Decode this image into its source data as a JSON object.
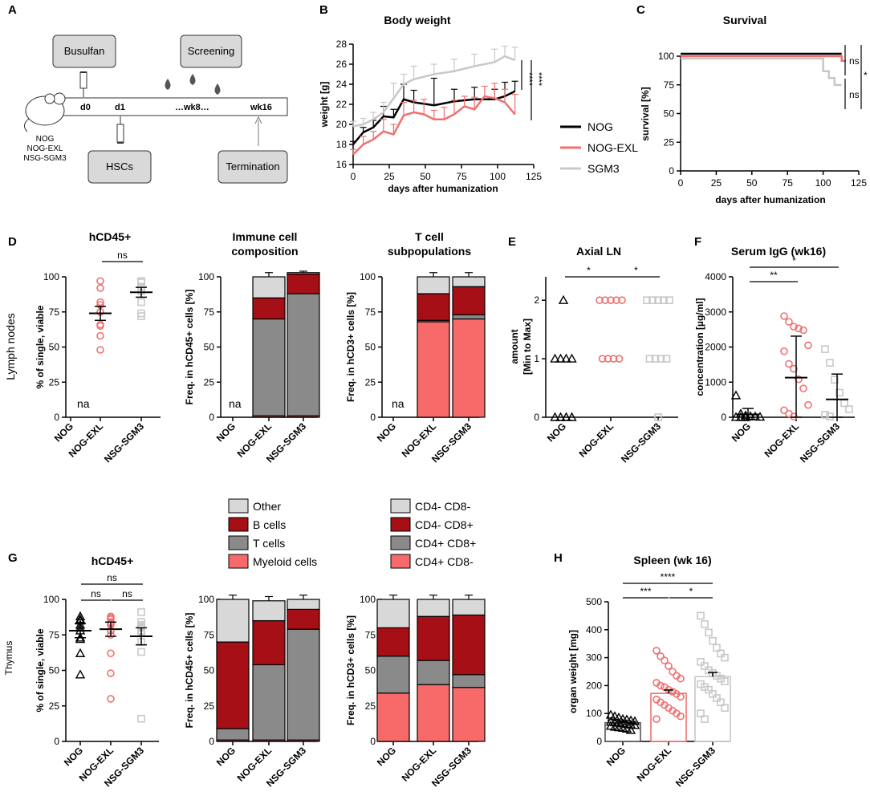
{
  "colors": {
    "nog": "#000000",
    "exl": "#f07070",
    "sgm3": "#c8c8c8",
    "other": "#d8d8d8",
    "b": "#a50f15",
    "t": "#8a8a8a",
    "my": "#f86a6a"
  },
  "panelA": {
    "letter": "A",
    "busulfan": "Busulfan",
    "screening": "Screening",
    "hscs": "HSCs",
    "termination": "Termination",
    "d0": "d0",
    "d1": "d1",
    "wk8": "…wk8…",
    "wk16": "wk16",
    "mice": [
      "NOG",
      "NOG-EXL",
      "NSG-SGM3"
    ]
  },
  "chart_data": [
    {
      "id": "B",
      "type": "line",
      "title": "Body weight",
      "xlabel": "days after humanization",
      "ylabel": "weight [g]",
      "xlim": [
        0,
        125
      ],
      "ylim": [
        16,
        28
      ],
      "xticks": [
        "0",
        "25",
        "50",
        "75",
        "100",
        "125"
      ],
      "yticks": [
        "16",
        "18",
        "20",
        "22",
        "24",
        "26",
        "28"
      ],
      "sig": [
        "****",
        "****"
      ],
      "legend": [
        "NOG",
        "NOG-EXL",
        "SGM3"
      ],
      "series": [
        {
          "name": "NOG",
          "x": [
            0,
            7,
            14,
            21,
            28,
            35,
            42,
            56,
            70,
            84,
            98,
            105,
            112
          ],
          "y": [
            18.0,
            19.2,
            19.7,
            20.8,
            20.7,
            22.5,
            22.2,
            21.9,
            22.3,
            22.5,
            22.5,
            22.8,
            23.3
          ],
          "err": [
            0.3,
            0.5,
            0.7,
            1.0,
            0.8,
            1.5,
            1.2,
            2.7,
            1.2,
            1.2,
            1.0,
            1.4,
            1.0
          ]
        },
        {
          "name": "NOG-EXL",
          "x": [
            0,
            7,
            14,
            21,
            28,
            35,
            42,
            49,
            56,
            63,
            70,
            77,
            84,
            91,
            98,
            105,
            112
          ],
          "y": [
            17.0,
            18.0,
            18.5,
            19.3,
            19.0,
            20.9,
            21.2,
            21.0,
            20.5,
            20.5,
            21.0,
            21.8,
            21.5,
            22.8,
            22.6,
            22.2,
            21.0
          ],
          "err": [
            0.5,
            0.8,
            0.8,
            1.2,
            1.0,
            1.3,
            1.2,
            1.5,
            0.9,
            1.2,
            1.4,
            1.0,
            1.2,
            1.0,
            1.5,
            1.3,
            2.0
          ]
        },
        {
          "name": "SGM3",
          "x": [
            0,
            7,
            14,
            21,
            28,
            35,
            42,
            56,
            70,
            84,
            98,
            105,
            112
          ],
          "y": [
            19.8,
            20.0,
            20.5,
            21.2,
            22.6,
            24.0,
            24.5,
            25.0,
            25.3,
            25.8,
            26.2,
            26.8,
            26.4
          ],
          "err": [
            0.5,
            0.6,
            0.7,
            1.0,
            1.5,
            1.0,
            1.3,
            1.0,
            1.2,
            1.2,
            1.3,
            1.0,
            1.3
          ]
        }
      ]
    },
    {
      "id": "C",
      "type": "line",
      "title": "Survival",
      "xlabel": "days after humanization",
      "ylabel": "survival [%]",
      "xlim": [
        0,
        125
      ],
      "ylim": [
        0,
        100
      ],
      "xticks": [
        "0",
        "25",
        "50",
        "75",
        "100",
        "125"
      ],
      "yticks": [
        "0",
        "25",
        "50",
        "75",
        "100"
      ],
      "sig": [
        "ns",
        "ns",
        "*"
      ],
      "series": [
        {
          "name": "NOG",
          "x": [
            0,
            113
          ],
          "y": [
            100,
            100
          ]
        },
        {
          "name": "NOG-EXL",
          "x": [
            0,
            113,
            113,
            116
          ],
          "y": [
            100,
            100,
            96,
            96
          ]
        },
        {
          "name": "SGM3",
          "x": [
            0,
            100,
            100,
            104,
            104,
            108,
            108,
            113
          ],
          "y": [
            100,
            100,
            89,
            89,
            83,
            83,
            77,
            77
          ]
        }
      ]
    },
    {
      "id": "D1",
      "type": "scatter",
      "title": "hCD45+",
      "ylabel": "% of single, viable",
      "rowlabel": "Lymph nodes",
      "categories": [
        "NOG",
        "NOG-EXL",
        "NSG-SGM3"
      ],
      "ylim": [
        0,
        100
      ],
      "yticks": [
        "0",
        "25",
        "50",
        "75",
        "100"
      ],
      "na": "na",
      "sig": "ns",
      "groups": [
        {
          "name": "NOG-EXL",
          "values": [
            97,
            92,
            82,
            80,
            75,
            66,
            65,
            58,
            48
          ],
          "mean": 74,
          "sem": 5
        },
        {
          "name": "NSG-SGM3",
          "values": [
            97,
            96,
            93,
            90,
            82,
            74,
            72
          ],
          "mean": 89,
          "sem": 3.5
        }
      ]
    },
    {
      "id": "D2",
      "type": "bar",
      "stacked": true,
      "title": "Immune cell composition",
      "ylabel": "Freq. in hCD45+ cells [%]",
      "categories": [
        "NOG",
        "NOG-EXL",
        "NSG-SGM3"
      ],
      "ylim": [
        0,
        100
      ],
      "yticks": [
        "0",
        "25",
        "50",
        "75",
        "100"
      ],
      "na": "na",
      "series": [
        {
          "name": "Myeloid cells",
          "values": [
            null,
            1,
            1
          ]
        },
        {
          "name": "T cells",
          "values": [
            null,
            69,
            87
          ]
        },
        {
          "name": "B cells",
          "values": [
            null,
            15,
            14
          ]
        },
        {
          "name": "Other",
          "values": [
            null,
            15,
            1
          ]
        }
      ]
    },
    {
      "id": "D3",
      "type": "bar",
      "stacked": true,
      "title": "T cell subpopulations",
      "ylabel": "Freq. in hCD3+ cells [%]",
      "categories": [
        "NOG",
        "NOG-EXL",
        "NSG-SGM3"
      ],
      "ylim": [
        0,
        100
      ],
      "yticks": [
        "0",
        "25",
        "50",
        "75",
        "100"
      ],
      "na": "na",
      "series": [
        {
          "name": "CD4+ CD8-",
          "values": [
            null,
            68,
            70
          ]
        },
        {
          "name": "CD4+ CD8+",
          "values": [
            null,
            1,
            3
          ]
        },
        {
          "name": "CD4- CD8+",
          "values": [
            null,
            19,
            20
          ]
        },
        {
          "name": "CD4- CD8-",
          "values": [
            null,
            12,
            7
          ]
        }
      ]
    },
    {
      "id": "E",
      "type": "scatter",
      "title": "Axial LN",
      "ylabel": "amount [Min to Max]",
      "categories": [
        "NOG",
        "NOG-EXL",
        "NSG-SGM3"
      ],
      "ylim": [
        0,
        2.4
      ],
      "yticks": [
        "0",
        "1",
        "2"
      ],
      "sig": [
        "*",
        "*"
      ],
      "groups": [
        {
          "name": "NOG",
          "values": [
            2,
            1,
            1,
            1,
            1,
            0,
            0,
            0,
            0
          ]
        },
        {
          "name": "NOG-EXL",
          "values": [
            2,
            2,
            2,
            2,
            2,
            1,
            1,
            1,
            1
          ]
        },
        {
          "name": "NSG-SGM3",
          "values": [
            2,
            2,
            2,
            2,
            2,
            1,
            1,
            1,
            1,
            0
          ]
        }
      ]
    },
    {
      "id": "F",
      "type": "scatter",
      "title": "Serum IgG (wk16)",
      "ylabel": "concentration [µg/ml]",
      "categories": [
        "NOG",
        "NOG-EXL",
        "NSG-SGM3"
      ],
      "ylim": [
        0,
        4000
      ],
      "yticks": [
        "0",
        "1000",
        "2000",
        "3000",
        "4000"
      ],
      "sig": [
        "**",
        "*"
      ],
      "groups": [
        {
          "name": "NOG",
          "values": [
            620,
            100,
            50,
            30,
            20,
            10,
            5,
            0,
            0
          ],
          "mean": 80,
          "sem": 170
        },
        {
          "name": "NOG-EXL",
          "values": [
            2880,
            2720,
            2580,
            2530,
            2480,
            2050,
            1880,
            1520,
            1380,
            1080,
            820,
            350,
            200,
            100,
            20
          ],
          "mean": 1130,
          "sem": 1180
        },
        {
          "name": "NSG-SGM3",
          "values": [
            1940,
            1550,
            1070,
            700,
            400,
            230,
            70,
            20
          ],
          "mean": 510,
          "sem": 720
        }
      ]
    },
    {
      "id": "G1",
      "type": "scatter",
      "title": "hCD45+",
      "ylabel": "% of single, viable",
      "rowlabel": "Thymus",
      "categories": [
        "NOG",
        "NOG-EXL",
        "NSG-SGM3"
      ],
      "ylim": [
        0,
        100
      ],
      "yticks": [
        "0",
        "25",
        "50",
        "75",
        "100"
      ],
      "sig": [
        "ns",
        "ns",
        "ns"
      ],
      "groups": [
        {
          "name": "NOG",
          "values": [
            88,
            86,
            85,
            82,
            80,
            78,
            73,
            72,
            62,
            47
          ],
          "mean": 78,
          "sem": 5
        },
        {
          "name": "NOG-EXL",
          "values": [
            88,
            87,
            86,
            84,
            83,
            82,
            78,
            75,
            62,
            48,
            30
          ],
          "mean": 79,
          "sem": 5
        },
        {
          "name": "NSG-SGM3",
          "values": [
            91,
            84,
            82,
            81,
            80,
            78,
            77,
            76,
            70,
            63,
            16
          ],
          "mean": 74,
          "sem": 6
        }
      ]
    },
    {
      "id": "G2",
      "type": "bar",
      "stacked": true,
      "ylabel": "Freq. in hCD45+ cells [%]",
      "categories": [
        "NOG",
        "NOG-EXL",
        "NSG-SGM3"
      ],
      "ylim": [
        0,
        100
      ],
      "yticks": [
        "0",
        "25",
        "50",
        "75",
        "100"
      ],
      "series": [
        {
          "name": "Myeloid cells",
          "values": [
            1,
            1,
            1
          ]
        },
        {
          "name": "T cells",
          "values": [
            8,
            53,
            78
          ]
        },
        {
          "name": "B cells",
          "values": [
            61,
            31,
            14
          ]
        },
        {
          "name": "Other",
          "values": [
            30,
            14,
            7
          ]
        }
      ]
    },
    {
      "id": "G3",
      "type": "bar",
      "stacked": true,
      "ylabel": "Freq. in hCD3+ cells [%]",
      "categories": [
        "NOG",
        "NOG-EXL",
        "NSG-SGM3"
      ],
      "ylim": [
        0,
        100
      ],
      "yticks": [
        "0",
        "25",
        "50",
        "75",
        "100"
      ],
      "series": [
        {
          "name": "CD4+ CD8-",
          "values": [
            34,
            40,
            38
          ]
        },
        {
          "name": "CD4+ CD8+",
          "values": [
            26,
            17,
            9
          ]
        },
        {
          "name": "CD4- CD8+",
          "values": [
            20,
            31,
            42
          ]
        },
        {
          "name": "CD4- CD8-",
          "values": [
            20,
            12,
            11
          ]
        }
      ]
    },
    {
      "id": "H",
      "type": "bar",
      "title": "Spleen (wk 16)",
      "ylabel": "organ weight [mg]",
      "categories": [
        "NOG",
        "NOG-EXL",
        "NSG-SGM3"
      ],
      "ylim": [
        0,
        500
      ],
      "yticks": [
        "0",
        "100",
        "200",
        "300",
        "400",
        "500"
      ],
      "sig": [
        "***",
        "****",
        "*"
      ],
      "values": [
        67,
        172,
        232
      ],
      "sem": [
        5,
        12,
        15
      ],
      "groups": [
        {
          "name": "NOG",
          "values": [
            95,
            90,
            85,
            80,
            78,
            75,
            72,
            70,
            68,
            66,
            64,
            62,
            60,
            58,
            55,
            52,
            50,
            48,
            45,
            40
          ]
        },
        {
          "name": "NOG-EXL",
          "values": [
            325,
            305,
            290,
            270,
            250,
            235,
            225,
            210,
            200,
            195,
            185,
            178,
            170,
            160,
            150,
            140,
            130,
            120,
            110,
            100,
            90,
            80
          ]
        },
        {
          "name": "NSG-SGM3",
          "values": [
            450,
            420,
            390,
            360,
            335,
            315,
            300,
            285,
            270,
            255,
            245,
            235,
            225,
            215,
            205,
            195,
            185,
            170,
            155,
            140,
            120,
            100,
            80
          ]
        }
      ]
    }
  ],
  "legend1": [
    "Other",
    "B cells",
    "T cells",
    "Myeloid cells"
  ],
  "legend2": [
    "CD4- CD8-",
    "CD4- CD8+",
    "CD4+ CD8+",
    "CD4+ CD8-"
  ],
  "letters": [
    "A",
    "B",
    "C",
    "D",
    "E",
    "F",
    "G",
    "H"
  ]
}
